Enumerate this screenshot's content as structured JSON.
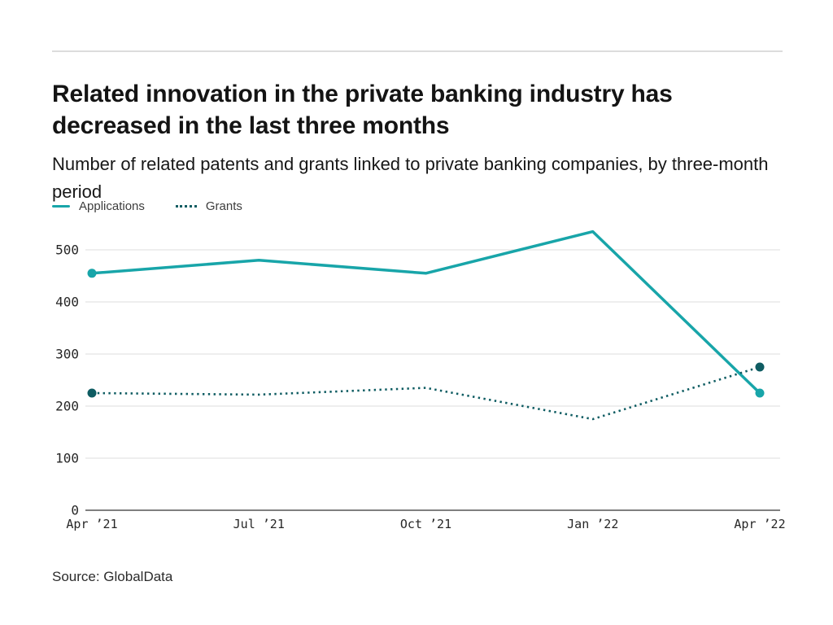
{
  "header": {
    "title": "Related innovation in the private banking industry has decreased in the last three months",
    "subtitle": "Number of related patents and grants linked to private banking companies, by three-month period"
  },
  "chart_data": {
    "type": "line",
    "title": "Related innovation in the private banking industry has decreased in the last three months",
    "subtitle": "Number of related patents and grants linked to private banking companies, by three-month period",
    "categories": [
      "Apr ’21",
      "Jul ’21",
      "Oct ’21",
      "Jan ’22",
      "Apr ’22"
    ],
    "series": [
      {
        "name": "Applications",
        "style": "solid",
        "color": "#18a5a9",
        "values": [
          455,
          480,
          455,
          535,
          225
        ]
      },
      {
        "name": "Grants",
        "style": "dotted",
        "color": "#0e5c62",
        "values": [
          225,
          222,
          235,
          175,
          275
        ]
      }
    ],
    "xlabel": "",
    "ylabel": "",
    "ylim": [
      0,
      500
    ],
    "yticks": [
      0,
      100,
      200,
      300,
      400,
      500
    ],
    "grid": "horizontal",
    "grid_color": "#e9e9e9",
    "axis_color": "#7f7f7f",
    "legend_position": "top-left",
    "markers": "endpoints-only"
  },
  "footer": {
    "source": "Source: GlobalData"
  }
}
